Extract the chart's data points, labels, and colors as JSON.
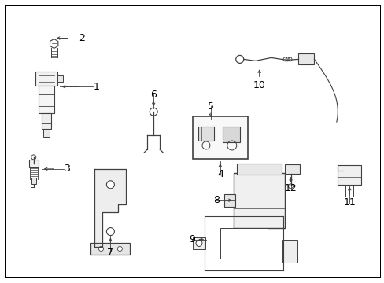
{
  "background_color": "#ffffff",
  "border_color": "#000000",
  "line_color": "#404040",
  "text_color": "#000000",
  "font_size": 8,
  "fig_width": 4.89,
  "fig_height": 3.6,
  "dpi": 100
}
